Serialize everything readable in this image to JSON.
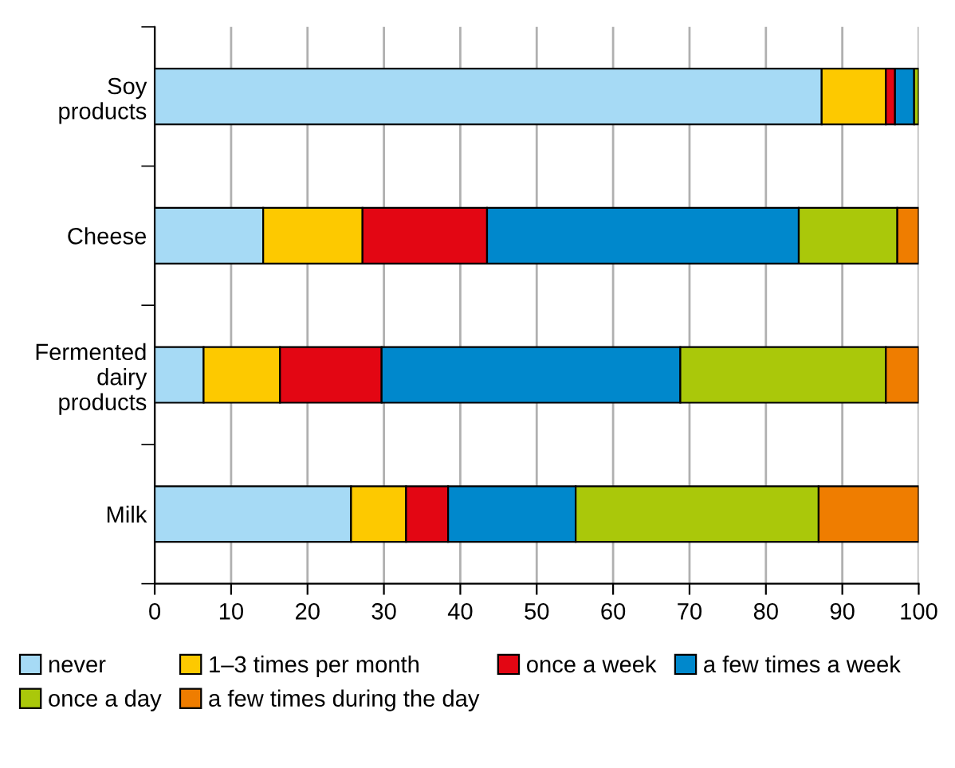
{
  "chart_data": {
    "type": "bar",
    "orientation": "horizontal",
    "stacked": true,
    "categories": [
      "Soy\nproducts",
      "Cheese",
      "Fermented\ndairy\nproducts",
      "Milk"
    ],
    "series": [
      {
        "name": "never",
        "color": "#a6daf5",
        "values": [
          87.3,
          14.2,
          6.4,
          25.7
        ]
      },
      {
        "name": "1–3 times per month",
        "color": "#fdc900",
        "values": [
          8.4,
          13.0,
          10.0,
          7.2
        ]
      },
      {
        "name": "once a week",
        "color": "#e30613",
        "values": [
          1.2,
          16.3,
          13.3,
          5.5
        ]
      },
      {
        "name": "a few times a week",
        "color": "#0088cc",
        "values": [
          2.5,
          40.8,
          39.1,
          16.7
        ]
      },
      {
        "name": "once a day",
        "color": "#aac80a",
        "values": [
          0.6,
          12.9,
          26.9,
          31.8
        ]
      },
      {
        "name": "a few times during the day",
        "color": "#ef7d00",
        "values": [
          null,
          2.8,
          4.3,
          13.1
        ]
      }
    ],
    "xlim": [
      0,
      100
    ],
    "xticks": [
      0,
      10,
      20,
      30,
      40,
      50,
      60,
      70,
      80,
      90,
      100
    ],
    "grid": "x",
    "legend": "bottom"
  }
}
